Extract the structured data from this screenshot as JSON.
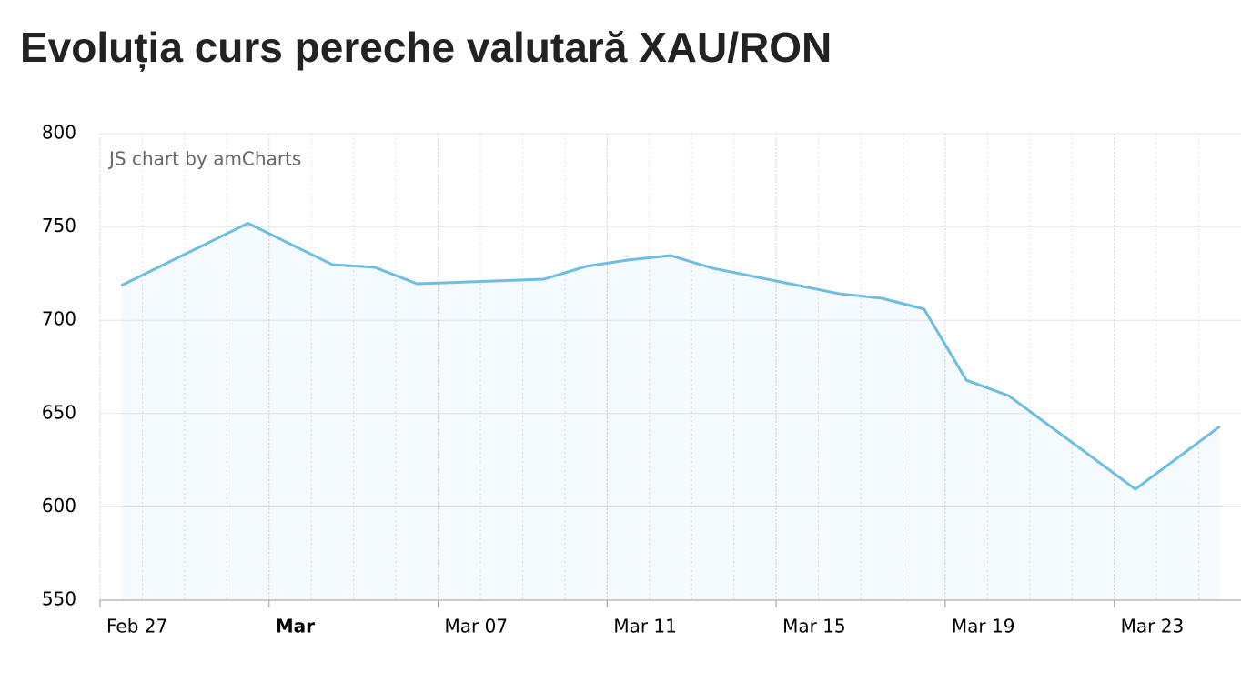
{
  "chart_data": {
    "type": "line",
    "title": "Evoluția curs pereche valutară XAU/RON",
    "credit": "JS chart by amCharts",
    "categories": [
      "Feb 27",
      null,
      null,
      null,
      "Mar",
      null,
      null,
      null,
      "Mar 07",
      null,
      null,
      null,
      "Mar 11",
      null,
      null,
      null,
      "Mar 15",
      null,
      null,
      null,
      "Mar 19",
      null,
      null,
      null,
      "Mar 23",
      null,
      null
    ],
    "series": [
      {
        "color": "#70bde3",
        "values": [
          718.6,
          null,
          null,
          752,
          null,
          729.8,
          728.4,
          719.6,
          null,
          null,
          722,
          728.9,
          732.3,
          734.7,
          727.9,
          null,
          null,
          714.2,
          711.8,
          706,
          667.9,
          659.6,
          null,
          null,
          609.5,
          null,
          643.1
        ]
      }
    ],
    "fill_area": true,
    "connect_nulls": true,
    "bold_month_start": true,
    "ylim": [
      550,
      800
    ],
    "yticks": [
      550,
      600,
      650,
      700,
      750,
      800
    ],
    "grid": true
  }
}
